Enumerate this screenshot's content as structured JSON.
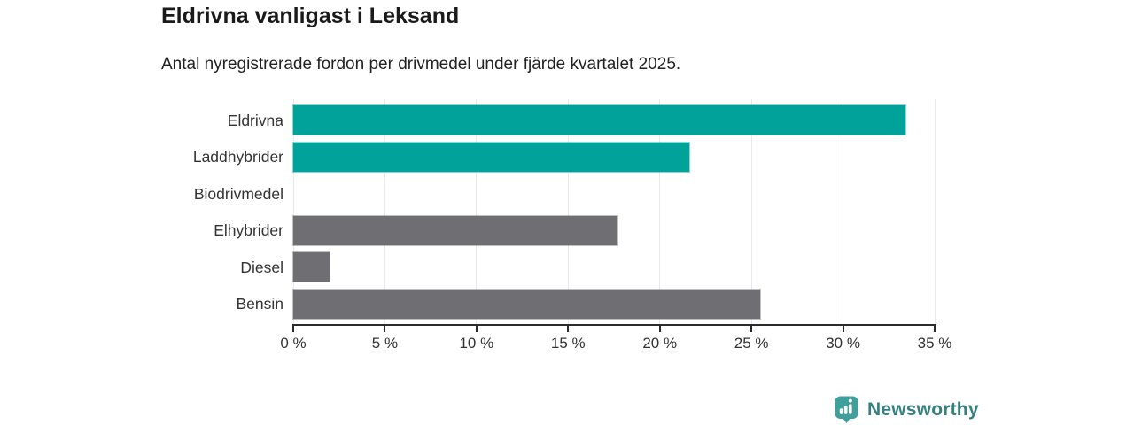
{
  "chart_data": {
    "type": "bar",
    "orientation": "horizontal",
    "title": "Eldrivna vanligast i Leksand",
    "subtitle": "Antal nyregistrerade fordon per drivmedel under fjärde kvartalet 2025.",
    "categories": [
      "Eldrivna",
      "Laddhybrider",
      "Biodrivmedel",
      "Elhybrider",
      "Diesel",
      "Bensin"
    ],
    "values": [
      33.4,
      21.6,
      0,
      17.7,
      2.0,
      25.5
    ],
    "unit": "%",
    "bar_colors": [
      "#00a299",
      "#00a299",
      "#6e6e73",
      "#6e6e73",
      "#6e6e73",
      "#6e6e73"
    ],
    "accent_color": "#00a299",
    "muted_color": "#6e6e73",
    "x_ticks": [
      "0 %",
      "5 %",
      "10 %",
      "15 %",
      "20 %",
      "25 %",
      "30 %",
      "35 %"
    ],
    "x_tick_values": [
      0,
      5,
      10,
      15,
      20,
      25,
      30,
      35
    ],
    "xlim": [
      0,
      35
    ],
    "xlabel": "",
    "ylabel": "",
    "grid": true,
    "gridline_color": "#e9e9e9",
    "axis_color": "#2b2b2b",
    "legend": "none"
  },
  "footer": {
    "brand": "Newsworthy",
    "icon_color": "#3fa09b",
    "text_color": "#35807e",
    "bar_chart_icon": "bar-chart-speech-bubble"
  }
}
